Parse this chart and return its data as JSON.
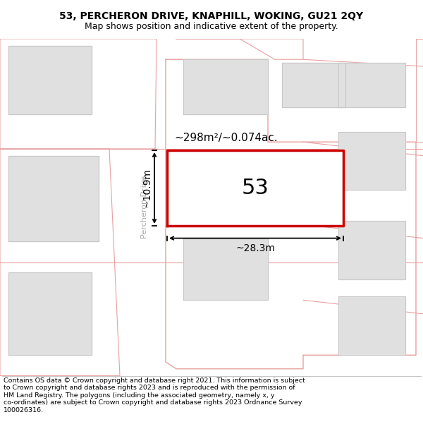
{
  "title_line1": "53, PERCHERON DRIVE, KNAPHILL, WOKING, GU21 2QY",
  "title_line2": "Map shows position and indicative extent of the property.",
  "footer_text": "Contains OS data © Crown copyright and database right 2021. This information is subject to Crown copyright and database rights 2023 and is reproduced with the permission of HM Land Registry. The polygons (including the associated geometry, namely x, y co-ordinates) are subject to Crown copyright and database rights 2023 Ordnance Survey 100026316.",
  "road_label": "Percheron Drive",
  "plot_number": "53",
  "area_label": "~298m²/~0.074ac.",
  "width_label": "~28.3m",
  "height_label": "~10.9m",
  "map_bg": "#f8f8f8",
  "highlight_color": "#cc0000",
  "outline_color": "#e8a0a0",
  "building_fill": "#e0e0e0",
  "building_outline": "#c8c8c8",
  "lot_fill": "#ffffff",
  "road_fill": "#ffffff",
  "title_fontsize": 10,
  "subtitle_fontsize": 9,
  "footer_fontsize": 6.8
}
